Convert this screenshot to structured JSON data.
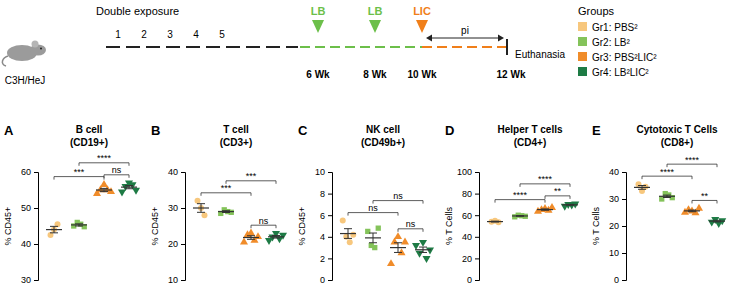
{
  "diagram": {
    "title": "Double exposure",
    "strain": "C3H/HeJ",
    "weeks": [
      "1",
      "2",
      "3",
      "4",
      "5"
    ],
    "events": [
      {
        "label": "LB",
        "time": "6 Wk",
        "color": "#6cbf4a"
      },
      {
        "label": "LB",
        "time": "8 Wk",
        "color": "#6cbf4a"
      },
      {
        "label": "LIC",
        "time": "10 Wk",
        "color": "#f07f1a"
      }
    ],
    "interval": "pi",
    "end": {
      "label": "Euthanasia",
      "time": "12 Wk"
    },
    "groups": {
      "title": "Groups",
      "items": [
        {
          "label": "Gr1: PBS²",
          "color": "#f7c77d"
        },
        {
          "label": "Gr2: LB²",
          "color": "#84c35a"
        },
        {
          "label": "Gr3: PBS²LIC²",
          "color": "#f08c2a"
        },
        {
          "label": "Gr4: LB²LIC²",
          "color": "#1e7b45"
        }
      ]
    }
  },
  "chart_data": [
    {
      "type": "scatter",
      "panel_label": "A",
      "title": "B cell",
      "subtitle": "(CD19+)",
      "ylabel": "% CD45+",
      "ylim": [
        30,
        60
      ],
      "yticks": [
        30,
        40,
        50,
        60
      ],
      "tick_labels": "y",
      "series": [
        {
          "color": "#f7c77d",
          "marker": "circle",
          "values": [
            42.5,
            44,
            45.5
          ],
          "mean": 44,
          "sem": 0.9
        },
        {
          "color": "#84c35a",
          "marker": "square",
          "values": [
            45,
            46,
            45.5,
            44.8
          ],
          "mean": 45.3,
          "sem": 0.3
        },
        {
          "color": "#f08c2a",
          "marker": "triangle",
          "values": [
            54,
            55,
            56.5,
            55,
            54.5
          ],
          "mean": 55,
          "sem": 0.45
        },
        {
          "color": "#1e7b45",
          "marker": "triangle-down",
          "values": [
            54.5,
            56,
            57,
            56.5,
            55
          ],
          "mean": 55.8,
          "sem": 0.45
        }
      ],
      "annotations": [
        {
          "text": "***",
          "groups": [
            0,
            2
          ]
        },
        {
          "text": "****",
          "groups": [
            1,
            3
          ]
        },
        {
          "text": "ns",
          "groups": [
            2,
            3
          ]
        }
      ]
    },
    {
      "type": "scatter",
      "panel_label": "B",
      "title": "T cell",
      "subtitle": "(CD3+)",
      "ylabel": "% CD45+",
      "ylim": [
        10,
        40
      ],
      "yticks": [
        10,
        20,
        30,
        40
      ],
      "tick_labels": "y",
      "series": [
        {
          "color": "#f7c77d",
          "marker": "circle",
          "values": [
            32,
            30,
            28
          ],
          "mean": 30,
          "sem": 1.2
        },
        {
          "color": "#84c35a",
          "marker": "square",
          "values": [
            28.5,
            29.5,
            29,
            28.8
          ],
          "mean": 29,
          "sem": 0.25
        },
        {
          "color": "#f08c2a",
          "marker": "triangle",
          "values": [
            20.5,
            22.5,
            23,
            21,
            22
          ],
          "mean": 21.8,
          "sem": 0.5
        },
        {
          "color": "#1e7b45",
          "marker": "triangle-down",
          "values": [
            21,
            22,
            23,
            21.5,
            22.5
          ],
          "mean": 22,
          "sem": 0.35
        }
      ],
      "annotations": [
        {
          "text": "***",
          "groups": [
            0,
            2
          ]
        },
        {
          "text": "***",
          "groups": [
            1,
            3
          ]
        },
        {
          "text": "ns",
          "groups": [
            2,
            3
          ]
        }
      ]
    },
    {
      "type": "scatter",
      "panel_label": "C",
      "title": "NK cell",
      "subtitle": "(CD49b+)",
      "ylabel": "% CD45+",
      "ylim": [
        0,
        10
      ],
      "yticks": [
        0,
        2,
        4,
        6,
        8,
        10
      ],
      "tick_labels": "y",
      "series": [
        {
          "color": "#f7c77d",
          "marker": "circle",
          "values": [
            5.5,
            4,
            3.5,
            4.2
          ],
          "mean": 4.3,
          "sem": 0.45
        },
        {
          "color": "#84c35a",
          "marker": "square",
          "values": [
            4.5,
            3.2,
            3,
            4.8
          ],
          "mean": 3.9,
          "sem": 0.45
        },
        {
          "color": "#f08c2a",
          "marker": "triangle",
          "values": [
            1.5,
            3.5,
            4,
            2.5,
            3.5
          ],
          "mean": 3,
          "sem": 0.45
        },
        {
          "color": "#1e7b45",
          "marker": "triangle-down",
          "values": [
            3.2,
            2.5,
            3.5,
            2,
            2.8
          ],
          "mean": 2.8,
          "sem": 0.25
        }
      ],
      "annotations": [
        {
          "text": "ns",
          "groups": [
            0,
            2
          ]
        },
        {
          "text": "ns",
          "groups": [
            1,
            3
          ]
        },
        {
          "text": "ns",
          "groups": [
            2,
            3
          ]
        }
      ]
    },
    {
      "type": "scatter",
      "panel_label": "D",
      "title": "Helper T cells",
      "subtitle": "(CD4+)",
      "ylabel": "% T Cells",
      "ylim": [
        0,
        100
      ],
      "yticks": [
        0,
        20,
        40,
        60,
        80,
        100
      ],
      "tick_labels": "y",
      "series": [
        {
          "color": "#f7c77d",
          "marker": "circle",
          "values": [
            54,
            54.8,
            53.5
          ],
          "mean": 54.1,
          "sem": 0.4
        },
        {
          "color": "#84c35a",
          "marker": "square",
          "values": [
            58.5,
            60,
            59.5,
            59
          ],
          "mean": 59.3,
          "sem": 0.3
        },
        {
          "color": "#f08c2a",
          "marker": "triangle",
          "values": [
            63.5,
            65,
            66,
            64.5,
            67
          ],
          "mean": 65.2,
          "sem": 0.6
        },
        {
          "color": "#1e7b45",
          "marker": "triangle-down",
          "values": [
            68.5,
            70,
            69.5,
            70.5
          ],
          "mean": 69.6,
          "sem": 0.4
        }
      ],
      "annotations": [
        {
          "text": "****",
          "groups": [
            0,
            2
          ]
        },
        {
          "text": "****",
          "groups": [
            1,
            3
          ]
        },
        {
          "text": "**",
          "groups": [
            2,
            3
          ]
        }
      ]
    },
    {
      "type": "scatter",
      "panel_label": "E",
      "title": "Cytotoxic T Cells",
      "subtitle": "(CD8+)",
      "ylabel": "% T Cells",
      "ylim": [
        0,
        40
      ],
      "yticks": [
        0,
        10,
        20,
        30,
        40
      ],
      "tick_labels": "y",
      "series": [
        {
          "color": "#f7c77d",
          "marker": "circle",
          "values": [
            35.5,
            33,
            34.5
          ],
          "mean": 34.3,
          "sem": 0.7
        },
        {
          "color": "#84c35a",
          "marker": "square",
          "values": [
            30,
            32,
            31.5,
            30.5
          ],
          "mean": 31,
          "sem": 0.45
        },
        {
          "color": "#f08c2a",
          "marker": "triangle",
          "values": [
            25,
            26,
            25.5,
            24.8,
            26.5
          ],
          "mean": 25.6,
          "sem": 0.3
        },
        {
          "color": "#1e7b45",
          "marker": "triangle-down",
          "values": [
            21.5,
            22.5,
            21,
            22
          ],
          "mean": 21.8,
          "sem": 0.3
        }
      ],
      "annotations": [
        {
          "text": "****",
          "groups": [
            0,
            2
          ]
        },
        {
          "text": "****",
          "groups": [
            1,
            3
          ]
        },
        {
          "text": "**",
          "groups": [
            2,
            3
          ]
        }
      ]
    }
  ]
}
